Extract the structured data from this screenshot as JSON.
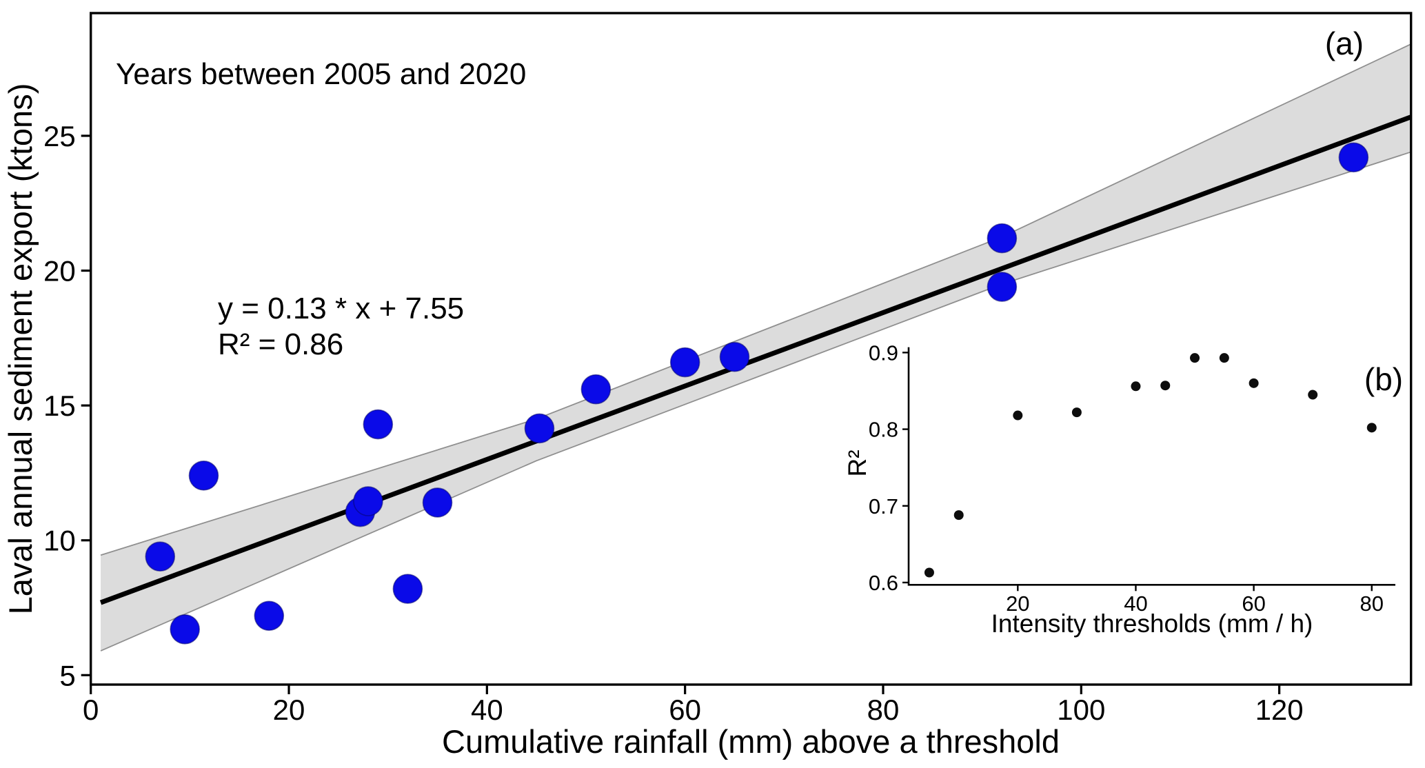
{
  "figure": {
    "background": "#ffffff",
    "title": "Years between 2005 and 2020"
  },
  "chart_data": [
    {
      "type": "scatter",
      "panel_label": "(a)",
      "title": "Years between 2005 and 2020",
      "xlabel": "Cumulative rainfall (mm) above a threshold",
      "ylabel": "Laval annual sediment export (ktons)",
      "x": [
        7,
        9.5,
        11.4,
        18,
        27.2,
        28,
        29,
        32,
        35,
        45.3,
        51,
        60,
        65,
        92,
        92,
        127.5
      ],
      "y": [
        9.4,
        6.7,
        12.4,
        7.2,
        11.05,
        11.45,
        14.3,
        8.2,
        11.4,
        14.15,
        15.6,
        16.6,
        16.8,
        21.2,
        19.4,
        24.2
      ],
      "regression": {
        "equation_text": "y = 0.13 * x + 7.55",
        "r2_text": "R² = 0.86",
        "slope": 0.13,
        "intercept": 7.55,
        "r_squared": 0.86,
        "line_endpoints": [
          [
            1,
            7.69
          ],
          [
            133.3,
            25.7
          ]
        ]
      },
      "ci_band": {
        "top_edge": [
          [
            1,
            9.45
          ],
          [
            45,
            14.5
          ],
          [
            92,
            21.25
          ],
          [
            133.3,
            28.4
          ]
        ],
        "bottom_edge": [
          [
            1,
            5.9
          ],
          [
            45,
            12.95
          ],
          [
            92,
            19.5
          ],
          [
            133.3,
            24.4
          ]
        ]
      },
      "xlim": [
        0,
        133.3
      ],
      "ylim": [
        4.65,
        29.55
      ],
      "xticks": [
        0,
        20,
        40,
        60,
        80,
        100,
        120
      ],
      "yticks": [
        5,
        10,
        15,
        20,
        25
      ],
      "grid": false,
      "legend": "none",
      "marker_color": "#0a0ae8",
      "marker_edge_color": "#06066e",
      "line_color": "#000000",
      "band_fill_color": "#dcdcdc",
      "band_edge_color": "#8f8f8f"
    },
    {
      "type": "scatter",
      "panel_label": "(b)",
      "xlabel": "Intensity thresholds (mm / h)",
      "ylabel": "R²",
      "x": [
        5,
        10,
        20,
        30,
        40,
        45,
        50,
        55,
        60,
        70,
        80
      ],
      "y": [
        0.613,
        0.688,
        0.818,
        0.822,
        0.856,
        0.857,
        0.893,
        0.893,
        0.86,
        0.845,
        0.802
      ],
      "xlim": [
        1.5,
        84
      ],
      "ylim": [
        0.597,
        0.907
      ],
      "xticks": [
        20,
        40,
        60,
        80
      ],
      "yticks": [
        0.6,
        0.7,
        0.8,
        0.9
      ],
      "grid": false,
      "legend": "none",
      "marker_color": "#0d0d0d"
    }
  ]
}
